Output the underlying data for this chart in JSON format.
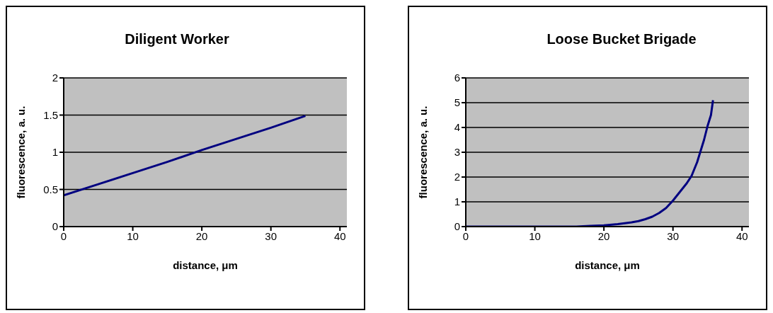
{
  "chart_data": [
    {
      "type": "line",
      "title": "Diligent Worker",
      "xlabel": "distance, μm",
      "ylabel": "fluorescence, a. u.",
      "xlim": [
        0,
        41
      ],
      "xticks": [
        0,
        10,
        20,
        30,
        40
      ],
      "ylim": [
        0,
        2
      ],
      "yticks": [
        0,
        0.5,
        1,
        1.5,
        2
      ],
      "grid": "y",
      "legend": false,
      "marker": "none",
      "line_style": "solid",
      "series": [
        {
          "color": "#000080",
          "x": [
            0,
            5,
            10,
            15,
            20,
            25,
            30,
            35
          ],
          "values": [
            0.42,
            0.57,
            0.72,
            0.87,
            1.03,
            1.18,
            1.33,
            1.49
          ]
        }
      ]
    },
    {
      "type": "line",
      "title": "Loose Bucket Brigade",
      "xlabel": "distance, μm",
      "ylabel": "fluorescence, a. u.",
      "xlim": [
        0,
        41
      ],
      "xticks": [
        0,
        10,
        20,
        30,
        40
      ],
      "ylim": [
        0,
        6
      ],
      "yticks": [
        0,
        1,
        2,
        3,
        4,
        5,
        6
      ],
      "grid": "y",
      "legend": false,
      "marker": "none",
      "line_style": "solid",
      "series": [
        {
          "color": "#000080",
          "x": [
            0,
            16,
            18,
            20,
            22,
            24,
            25,
            26,
            27,
            28,
            29,
            30,
            31,
            32,
            32.7,
            33.5,
            34,
            34.5,
            35,
            35.5,
            35.8
          ],
          "values": [
            0,
            0,
            0.03,
            0.05,
            0.1,
            0.17,
            0.22,
            0.3,
            0.4,
            0.55,
            0.75,
            1.05,
            1.4,
            1.75,
            2.05,
            2.6,
            3.05,
            3.5,
            4.05,
            4.5,
            5.1
          ]
        }
      ]
    }
  ]
}
